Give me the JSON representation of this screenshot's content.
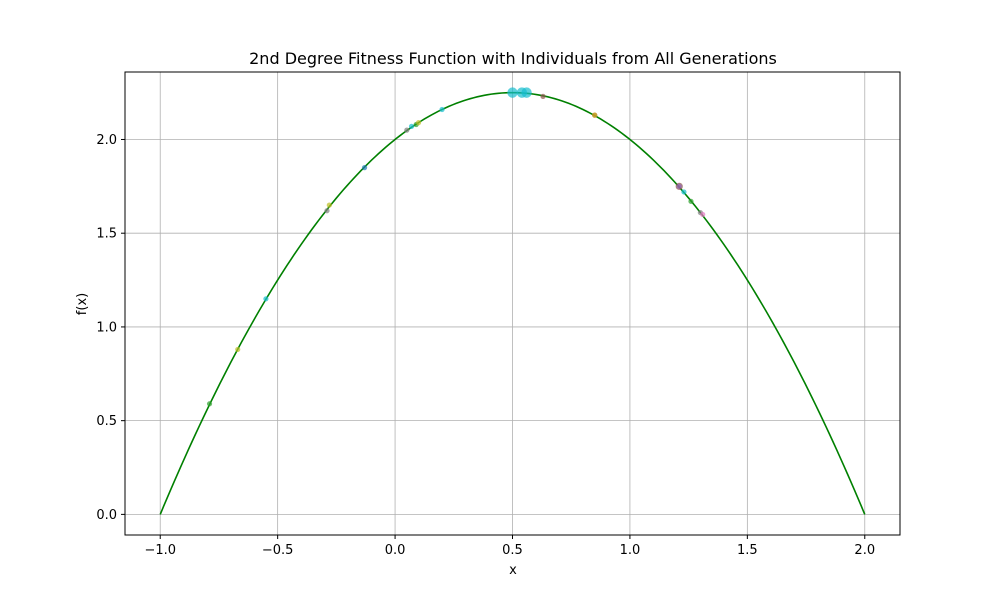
{
  "chart_data": {
    "type": "scatter",
    "title": "2nd Degree Fitness Function with Individuals from All Generations",
    "xlabel": "x",
    "ylabel": "f(x)",
    "xlim": [
      -1.15,
      2.15
    ],
    "ylim": [
      -0.11,
      2.36
    ],
    "xticks": [
      -1.0,
      -0.5,
      0.0,
      0.5,
      1.0,
      1.5,
      2.0
    ],
    "xtick_labels": [
      "−1.0",
      "−0.5",
      "0.0",
      "0.5",
      "1.0",
      "1.5",
      "2.0"
    ],
    "yticks": [
      0.0,
      0.5,
      1.0,
      1.5,
      2.0
    ],
    "ytick_labels": [
      "0.0",
      "0.5",
      "1.0",
      "1.5",
      "2.0"
    ],
    "grid": true,
    "function": {
      "expression": "f(x) = -x^2 + x + 2",
      "x_range": [
        -1.0,
        2.0
      ],
      "color": "#008000"
    },
    "points": [
      {
        "x": -0.79,
        "y": 0.59,
        "color": "#2ca02c",
        "size": "small"
      },
      {
        "x": -0.67,
        "y": 0.88,
        "color": "#bcbd22",
        "size": "small"
      },
      {
        "x": -0.55,
        "y": 1.15,
        "color": "#17becf",
        "size": "small"
      },
      {
        "x": -0.29,
        "y": 1.62,
        "color": "#7f7f7f",
        "size": "small"
      },
      {
        "x": -0.28,
        "y": 1.65,
        "color": "#bcbd22",
        "size": "small"
      },
      {
        "x": -0.13,
        "y": 1.85,
        "color": "#1f77b4",
        "size": "small"
      },
      {
        "x": 0.05,
        "y": 2.05,
        "color": "#7f7f7f",
        "size": "small"
      },
      {
        "x": 0.07,
        "y": 2.07,
        "color": "#17becf",
        "size": "small"
      },
      {
        "x": 0.09,
        "y": 2.08,
        "color": "#2ca02c",
        "size": "small"
      },
      {
        "x": 0.1,
        "y": 2.09,
        "color": "#bcbd22",
        "size": "small"
      },
      {
        "x": 0.2,
        "y": 2.16,
        "color": "#17becf",
        "size": "small"
      },
      {
        "x": 0.5,
        "y": 2.25,
        "color": "#17becf",
        "size": "large"
      },
      {
        "x": 0.54,
        "y": 2.25,
        "color": "#17becf",
        "size": "large"
      },
      {
        "x": 0.56,
        "y": 2.25,
        "color": "#17becf",
        "size": "large"
      },
      {
        "x": 0.63,
        "y": 2.23,
        "color": "#8c564b",
        "size": "small"
      },
      {
        "x": 0.85,
        "y": 2.13,
        "color": "#d62728",
        "size": "small"
      },
      {
        "x": 0.85,
        "y": 2.13,
        "color": "#bcbd22",
        "size": "small"
      },
      {
        "x": 1.21,
        "y": 1.75,
        "color": "#8c564b",
        "size": "medium"
      },
      {
        "x": 1.21,
        "y": 1.75,
        "color": "#9467bd",
        "size": "small"
      },
      {
        "x": 1.23,
        "y": 1.72,
        "color": "#17becf",
        "size": "small"
      },
      {
        "x": 1.26,
        "y": 1.67,
        "color": "#2ca02c",
        "size": "small"
      },
      {
        "x": 1.3,
        "y": 1.61,
        "color": "#7f7f7f",
        "size": "small"
      },
      {
        "x": 1.31,
        "y": 1.6,
        "color": "#e377c2",
        "size": "small"
      }
    ]
  }
}
